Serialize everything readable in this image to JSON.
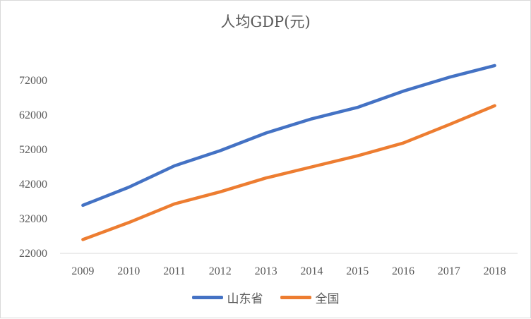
{
  "chart_data": {
    "type": "line",
    "title": "人均GDP(元)",
    "xlabel": "",
    "ylabel": "",
    "categories": [
      "2009",
      "2010",
      "2011",
      "2012",
      "2013",
      "2014",
      "2015",
      "2016",
      "2017",
      "2018"
    ],
    "series": [
      {
        "name": "山东省",
        "color": "#4472C4",
        "values": [
          35900,
          41100,
          47300,
          51700,
          56800,
          60900,
          64200,
          68900,
          72900,
          76300
        ]
      },
      {
        "name": "全国",
        "color": "#ED7D31",
        "values": [
          26000,
          30900,
          36300,
          39800,
          43800,
          47000,
          50200,
          53900,
          59200,
          64700
        ]
      }
    ],
    "ylim": [
      22000,
      72000
    ],
    "yticks": [
      "22000",
      "32000",
      "42000",
      "52000",
      "62000",
      "72000"
    ],
    "grid": false,
    "legend": "bottom"
  }
}
